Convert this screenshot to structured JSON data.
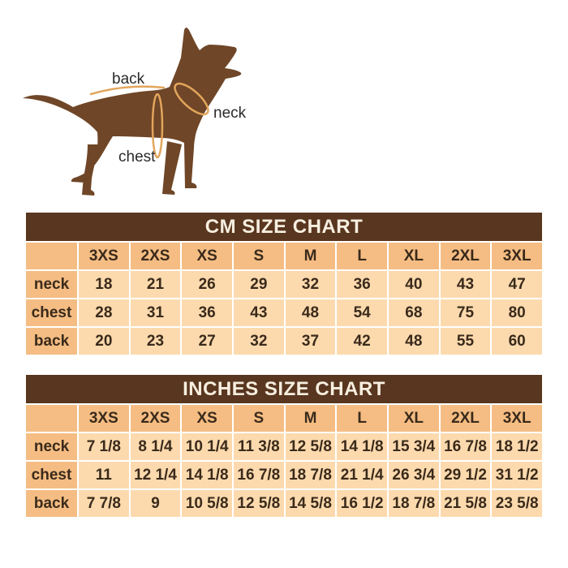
{
  "colors": {
    "page_bg": "#ffffff",
    "title_bar_bg": "#59361f",
    "title_text": "#f7efe0",
    "header_cell_bg": "#f5bd83",
    "data_cell_bg": "#fcdaae",
    "cell_border": "#ffffff",
    "table_text": "#3a2a1b",
    "dog_body": "#6f4627",
    "measure_line": "#e2a55c",
    "diagram_label_text": "#2a2a2a"
  },
  "diagram": {
    "back_label": "back",
    "neck_label": "neck",
    "chest_label": "chest"
  },
  "chart_data": [
    {
      "type": "table",
      "title": "CM SIZE CHART",
      "columns": [
        "",
        "3XS",
        "2XS",
        "XS",
        "S",
        "M",
        "L",
        "XL",
        "2XL",
        "3XL"
      ],
      "rows": [
        {
          "label": "neck",
          "values": [
            "18",
            "21",
            "26",
            "29",
            "32",
            "36",
            "40",
            "43",
            "47"
          ]
        },
        {
          "label": "chest",
          "values": [
            "28",
            "31",
            "36",
            "43",
            "48",
            "54",
            "68",
            "75",
            "80"
          ]
        },
        {
          "label": "back",
          "values": [
            "20",
            "23",
            "27",
            "32",
            "37",
            "42",
            "48",
            "55",
            "60"
          ]
        }
      ]
    },
    {
      "type": "table",
      "title": "INCHES SIZE CHART",
      "columns": [
        "",
        "3XS",
        "2XS",
        "XS",
        "S",
        "M",
        "L",
        "XL",
        "2XL",
        "3XL"
      ],
      "rows": [
        {
          "label": "neck",
          "values": [
            "7 1/8",
            "8 1/4",
            "10 1/4",
            "11 3/8",
            "12 5/8",
            "14 1/8",
            "15 3/4",
            "16 7/8",
            "18 1/2"
          ]
        },
        {
          "label": "chest",
          "values": [
            "11",
            "12 1/4",
            "14 1/8",
            "16 7/8",
            "18 7/8",
            "21 1/4",
            "26 3/4",
            "29 1/2",
            "31 1/2"
          ]
        },
        {
          "label": "back",
          "values": [
            "7 7/8",
            "9",
            "10 5/8",
            "12 5/8",
            "14 5/8",
            "16 1/2",
            "18 7/8",
            "21 5/8",
            "23 5/8"
          ]
        }
      ]
    }
  ]
}
